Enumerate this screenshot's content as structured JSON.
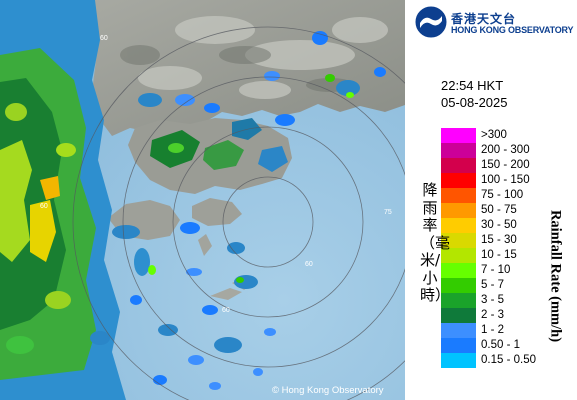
{
  "title_chinese": "香港天文台",
  "title_english": "HONG KONG OBSERVATORY",
  "time": "22:54 HKT",
  "date": "05-08-2025",
  "legend_title_chinese": "降雨率（毫米/小時）",
  "legend_title_english": "Rainfall Rate (mm/h)",
  "copyright": "© Hong Kong Observatory",
  "range_ring_labels": [
    "60",
    "60",
    "60",
    "60",
    "75"
  ],
  "legend": [
    {
      "label": ">300",
      "color": "#ff00ff"
    },
    {
      "label": "200 - 300",
      "color": "#cc0099"
    },
    {
      "label": "150 - 200",
      "color": "#d3004c"
    },
    {
      "label": "100 - 150",
      "color": "#ff0000"
    },
    {
      "label": "75 - 100",
      "color": "#ff5500"
    },
    {
      "label": "50 - 75",
      "color": "#ff9900"
    },
    {
      "label": "30 - 50",
      "color": "#ffcc00"
    },
    {
      "label": "15 - 30",
      "color": "#d9d900"
    },
    {
      "label": "10 - 15",
      "color": "#b3e600"
    },
    {
      "label": "7 - 10",
      "color": "#66ff00"
    },
    {
      "label": "5 - 7",
      "color": "#33cc00"
    },
    {
      "label": "3 - 5",
      "color": "#1aa32a"
    },
    {
      "label": "2 - 3",
      "color": "#0f7a3a"
    },
    {
      "label": "1 - 2",
      "color": "#3d8fff"
    },
    {
      "label": "0.50 - 1",
      "color": "#1a7bff"
    },
    {
      "label": "0.15 - 0.50",
      "color": "#00c3ff"
    }
  ]
}
